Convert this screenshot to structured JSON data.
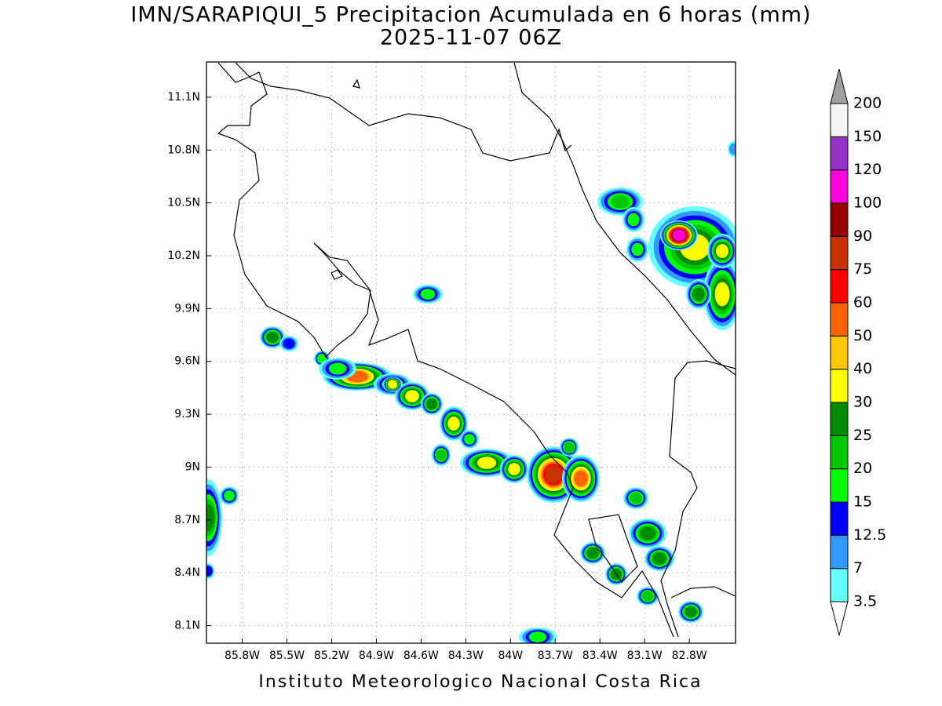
{
  "title": "IMN/SARAPIQUI_5 Precipitacion Acumulada en 6 horas (mm)",
  "subtitle": "2025-11-07 06Z",
  "map": {
    "xlim": [
      -86.04,
      -82.49
    ],
    "ylim": [
      8.0,
      11.3
    ],
    "grid": true,
    "xticks": [
      {
        "value": -85.8,
        "label": "85.8W"
      },
      {
        "value": -85.5,
        "label": "85.5W"
      },
      {
        "value": -85.2,
        "label": "85.2W"
      },
      {
        "value": -84.9,
        "label": "84.9W"
      },
      {
        "value": -84.6,
        "label": "84.6W"
      },
      {
        "value": -84.3,
        "label": "84.3W"
      },
      {
        "value": -84,
        "label": "84W"
      },
      {
        "value": -83.7,
        "label": "83.7W"
      },
      {
        "value": -83.4,
        "label": "83.4W"
      },
      {
        "value": -83.1,
        "label": "83.1W"
      },
      {
        "value": -82.8,
        "label": "82.8W"
      }
    ],
    "yticks": [
      {
        "value": 11.1,
        "label": "11.1N"
      },
      {
        "value": 10.8,
        "label": "10.8N"
      },
      {
        "value": 10.5,
        "label": "10.5N"
      },
      {
        "value": 10.2,
        "label": "10.2N"
      },
      {
        "value": 9.9,
        "label": "9.9N"
      },
      {
        "value": 9.6,
        "label": "9.6N"
      },
      {
        "value": 9.3,
        "label": "9.3N"
      },
      {
        "value": 9,
        "label": "9N"
      },
      {
        "value": 8.7,
        "label": "8.7N"
      },
      {
        "value": 8.4,
        "label": "8.4N"
      },
      {
        "value": 8.1,
        "label": "8.1N"
      }
    ]
  },
  "colorbar": {
    "levels": [
      3.5,
      7,
      12.5,
      15,
      20,
      25,
      30,
      40,
      50,
      60,
      75,
      90,
      100,
      120,
      150,
      200
    ],
    "colors": [
      "#66ffff",
      "#3399ff",
      "#0000ff",
      "#00ff00",
      "#00c800",
      "#008c00",
      "#ffff00",
      "#ffc800",
      "#ff6400",
      "#ff0000",
      "#c83200",
      "#960000",
      "#ff00dc",
      "#9632c8",
      "#f5f5f5"
    ],
    "under_color": "#ffffff",
    "over_color": "#a0a0a0"
  },
  "credit": "Instituto Meteorologico Nacional Costa Rica"
}
